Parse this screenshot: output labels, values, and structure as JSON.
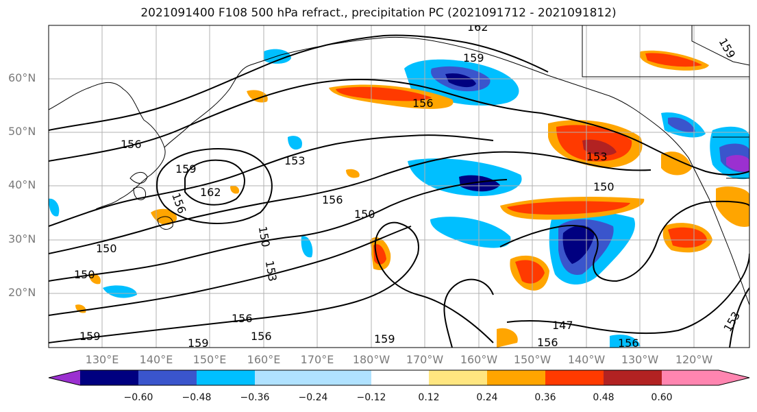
{
  "title": "2021091400 F108 500 hPa refract., precipitation PC (2021091712 - 2021091812)",
  "lat_labels": [
    "60°N",
    "50°N",
    "40°N",
    "30°N",
    "20°N"
  ],
  "lon_labels": [
    "130°E",
    "140°E",
    "150°E",
    "160°E",
    "170°E",
    "180°W",
    "170°W",
    "160°W",
    "150°W",
    "140°W",
    "130°W",
    "120°W"
  ],
  "colorbar": {
    "ticks": [
      "−0.60",
      "−0.48",
      "−0.36",
      "−0.24",
      "−0.12",
      "0.12",
      "0.24",
      "0.36",
      "0.48",
      "0.60"
    ],
    "colors": [
      "#9b30d0",
      "#000080",
      "#3a55cc",
      "#00bfff",
      "#b0e2ff",
      "#ffffff",
      "#ffe680",
      "#ffa500",
      "#ff3a00",
      "#b22222",
      "#ff85b0"
    ]
  },
  "contour_labels": [
    {
      "text": "162"
    },
    {
      "text": "159"
    },
    {
      "text": "156"
    },
    {
      "text": "156"
    },
    {
      "text": "159"
    },
    {
      "text": "162"
    },
    {
      "text": "153"
    },
    {
      "text": "156"
    },
    {
      "text": "150"
    },
    {
      "text": "150"
    },
    {
      "text": "153"
    },
    {
      "text": "150"
    },
    {
      "text": "150"
    },
    {
      "text": "156"
    },
    {
      "text": "159"
    },
    {
      "text": "156"
    },
    {
      "text": "159"
    },
    {
      "text": "147"
    },
    {
      "text": "156"
    },
    {
      "text": "156"
    },
    {
      "text": "153"
    },
    {
      "text": "150"
    },
    {
      "text": "153"
    },
    {
      "text": "159"
    },
    {
      "text": "156"
    },
    {
      "text": "159"
    }
  ]
}
